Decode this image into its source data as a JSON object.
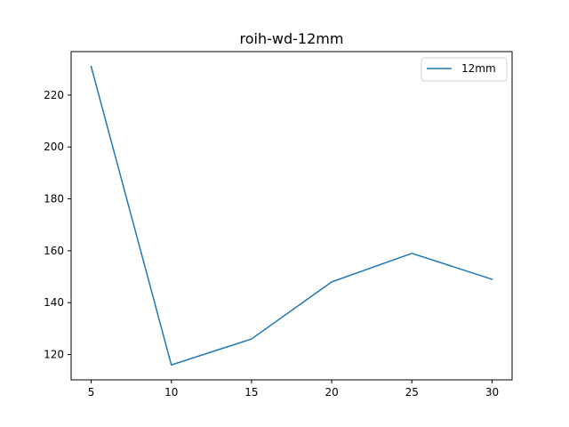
{
  "chart_data": {
    "type": "line",
    "title": "roih-wd-12mm",
    "xlabel": "",
    "ylabel": "",
    "x": [
      5,
      10,
      15,
      20,
      25,
      30
    ],
    "series": [
      {
        "name": "12mm",
        "values": [
          231,
          116,
          126,
          148,
          159,
          149
        ],
        "color": "#1f77b4"
      }
    ],
    "xlim": [
      3.75,
      31.25
    ],
    "ylim": [
      110.25,
      236.75
    ],
    "xticks": [
      "5",
      "10",
      "15",
      "20",
      "25",
      "30"
    ],
    "yticks": [
      "120",
      "140",
      "160",
      "180",
      "200",
      "220"
    ],
    "grid": false,
    "legend": "top-right"
  }
}
